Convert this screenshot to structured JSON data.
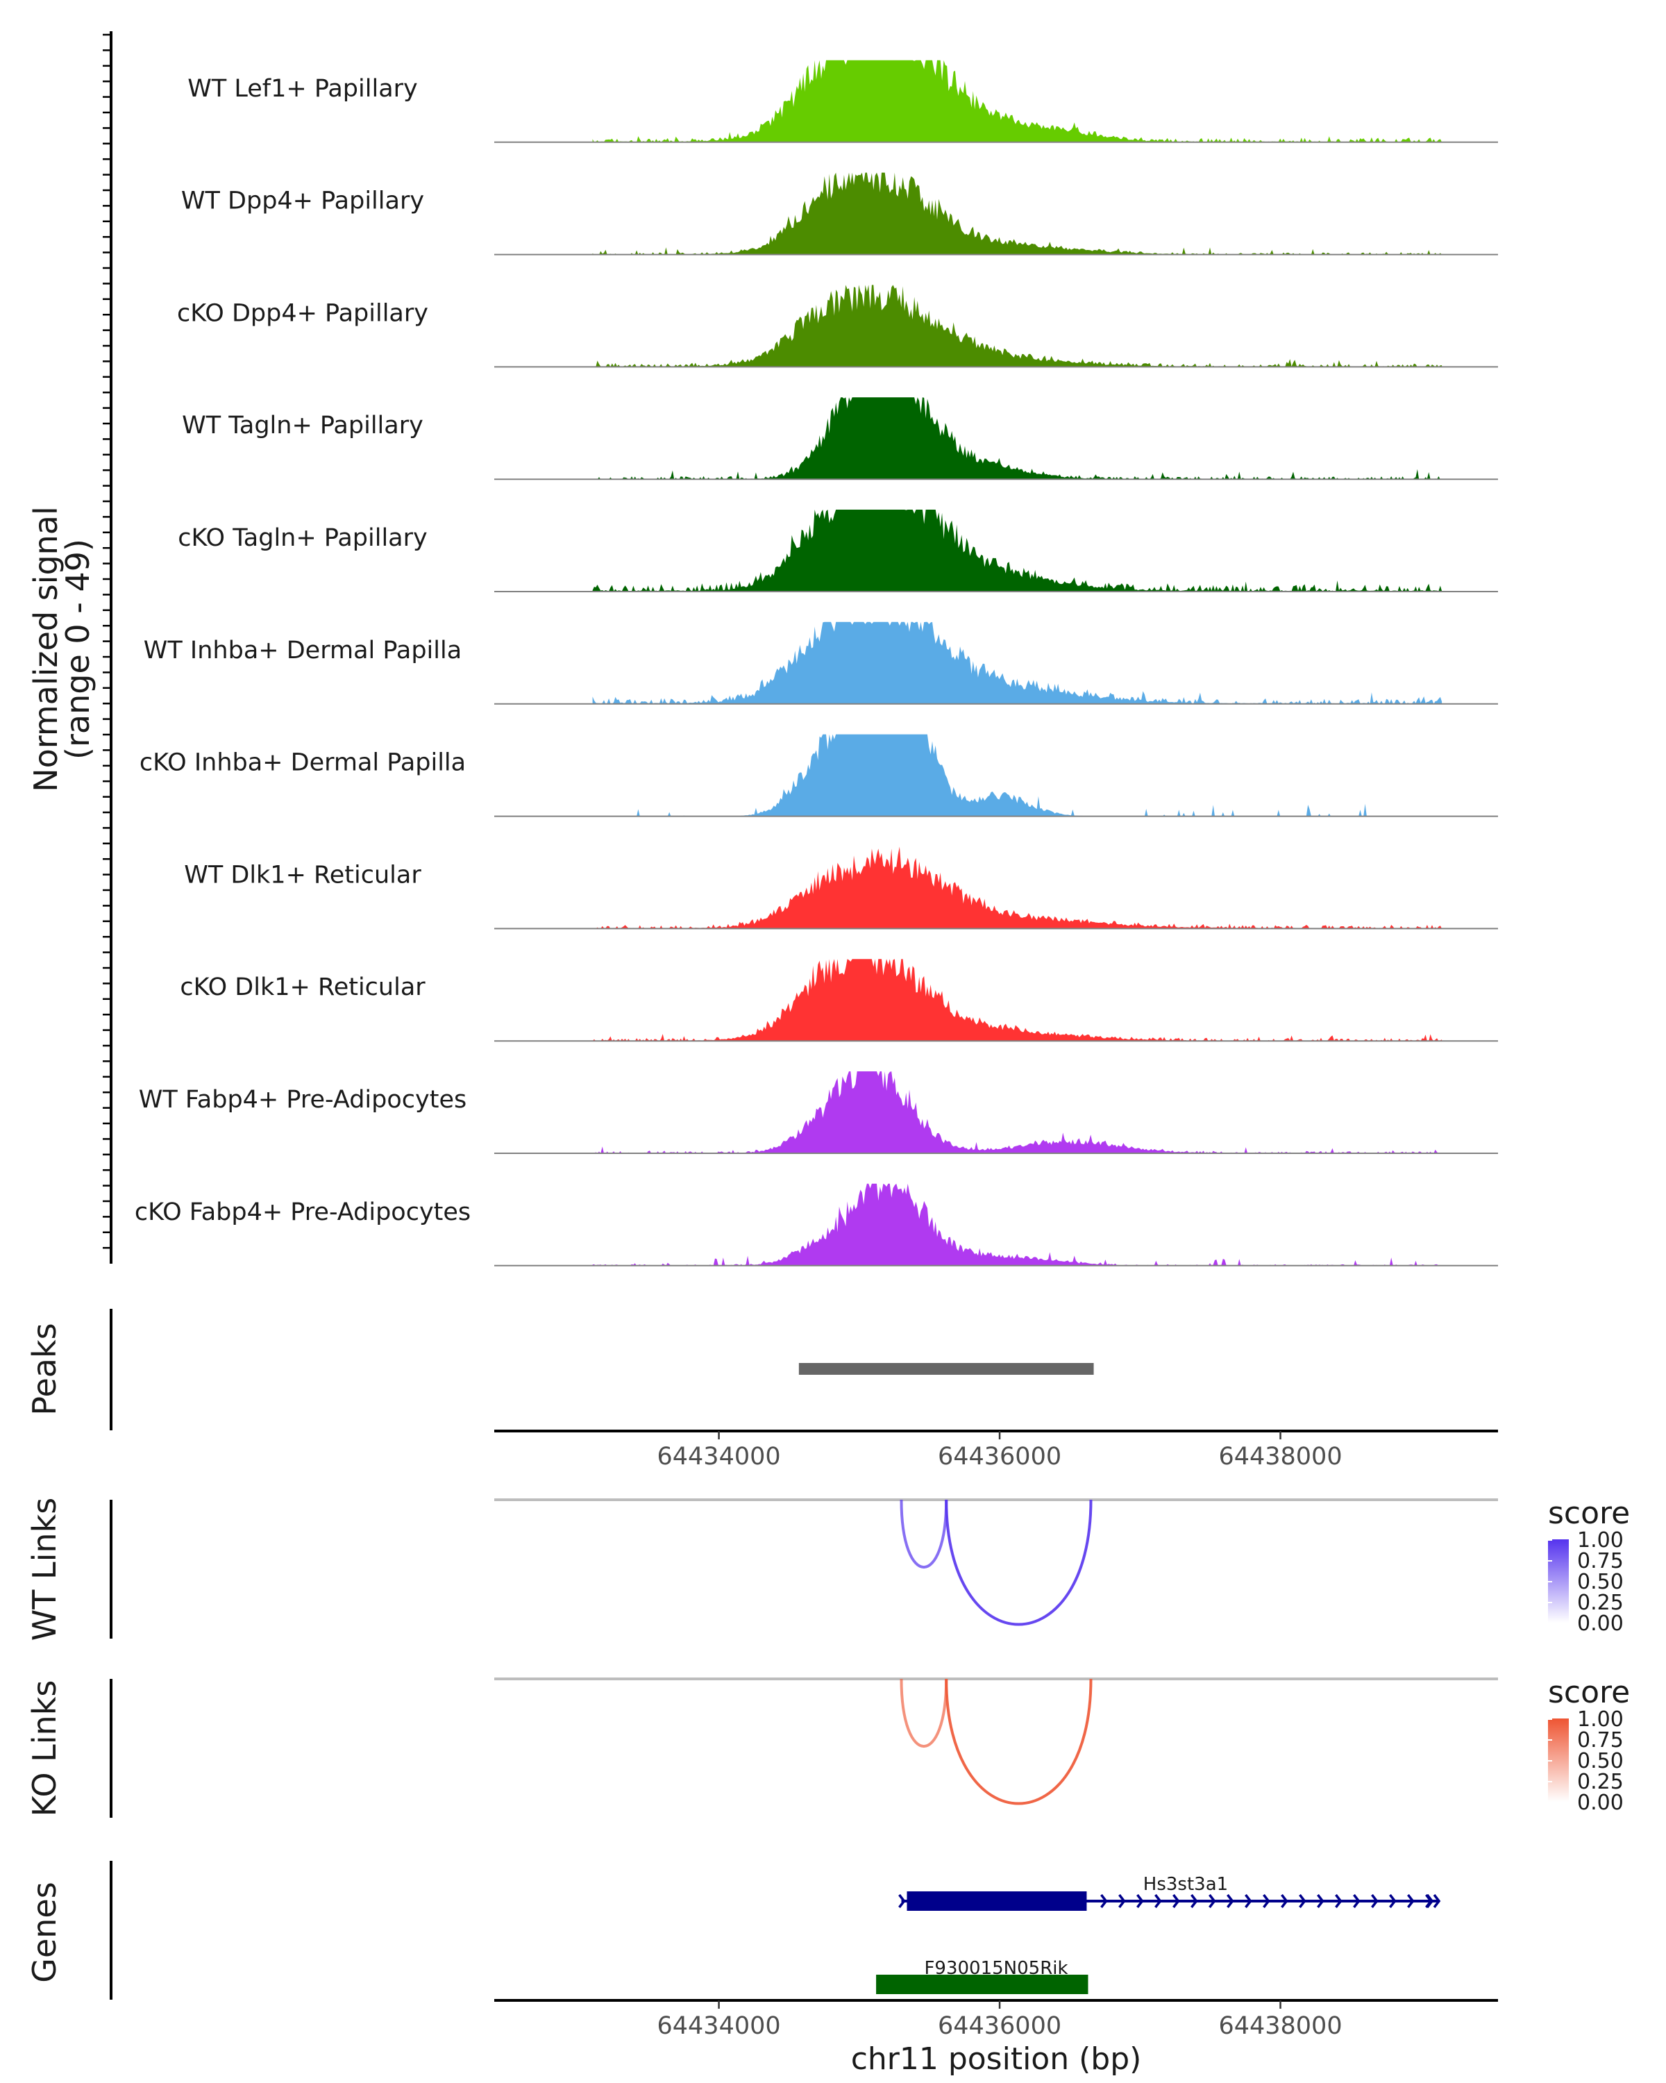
{
  "chart_data": {
    "type": "area",
    "title": "",
    "xlabel": "chr11 position (bp)",
    "ylabel_line1": "Normalized signal",
    "ylabel_line2": "(range 0 - 49)",
    "xlim": [
      64432400,
      64439550
    ],
    "ylim": [
      0,
      49
    ],
    "xticks": [
      64434000,
      64436000,
      64438000
    ],
    "xtick_labels": [
      "64434000",
      "64436000",
      "64438000"
    ],
    "coverage_tracks": [
      {
        "label": "WT Lef1+ Papillary",
        "color": "#66cc00",
        "color_key": "lime-green",
        "peaks": [
          [
            64435180,
            48,
            560
          ],
          [
            64434700,
            10,
            300
          ],
          [
            64435900,
            5,
            600
          ],
          [
            64436400,
            3,
            400
          ]
        ],
        "baseline": 0.6,
        "noise": 1.2,
        "seed": 1
      },
      {
        "label": "WT Dpp4+ Papillary",
        "color": "#4c8c00",
        "color_key": "olive-green",
        "peaks": [
          [
            64435120,
            34,
            520
          ],
          [
            64434700,
            8,
            260
          ],
          [
            64436000,
            4,
            700
          ]
        ],
        "baseline": 0.3,
        "noise": 2.0,
        "seed": 2
      },
      {
        "label": "cKO Dpp4+ Papillary",
        "color": "#4c8c00",
        "color_key": "olive-green",
        "peaks": [
          [
            64435130,
            30,
            560
          ],
          [
            64434700,
            8,
            300
          ],
          [
            64435900,
            4,
            700
          ]
        ],
        "baseline": 0.5,
        "noise": 1.6,
        "seed": 3
      },
      {
        "label": "WT Tagln+ Papillary",
        "color": "#006400",
        "color_key": "dark-green",
        "peaks": [
          [
            64435200,
            48,
            360
          ],
          [
            64434900,
            14,
            260
          ],
          [
            64435700,
            8,
            500
          ]
        ],
        "baseline": 0.4,
        "noise": 2.4,
        "seed": 4
      },
      {
        "label": "cKO Tagln+ Papillary",
        "color": "#006400",
        "color_key": "dark-green",
        "peaks": [
          [
            64435180,
            44,
            520
          ],
          [
            64434700,
            12,
            300
          ],
          [
            64435900,
            7,
            650
          ]
        ],
        "baseline": 1.0,
        "noise": 2.2,
        "seed": 5
      },
      {
        "label": "WT Inhba+ Dermal Papilla",
        "color": "#5aabe6",
        "color_key": "sky-blue",
        "peaks": [
          [
            64435160,
            44,
            560
          ],
          [
            64434700,
            10,
            300
          ],
          [
            64436100,
            6,
            700
          ]
        ],
        "baseline": 0.8,
        "noise": 1.8,
        "seed": 6
      },
      {
        "label": "cKO Inhba+ Dermal Papilla",
        "color": "#5aabe6",
        "color_key": "sky-blue",
        "peaks": [
          [
            64435050,
            44,
            360
          ],
          [
            64435280,
            46,
            280
          ],
          [
            64434700,
            12,
            260
          ],
          [
            64436000,
            9,
            300
          ]
        ],
        "baseline": 0.0,
        "noise": 3.2,
        "seed": 7
      },
      {
        "label": "WT Dlk1+ Reticular",
        "color": "#ff3333",
        "color_key": "red",
        "peaks": [
          [
            64435200,
            28,
            560
          ],
          [
            64434700,
            8,
            300
          ],
          [
            64436100,
            4,
            800
          ]
        ],
        "baseline": 0.5,
        "noise": 1.5,
        "seed": 8
      },
      {
        "label": "cKO Dlk1+ Reticular",
        "color": "#ff3333",
        "color_key": "red",
        "peaks": [
          [
            64435100,
            36,
            520
          ],
          [
            64434700,
            9,
            280
          ],
          [
            64436000,
            4,
            700
          ]
        ],
        "baseline": 0.4,
        "noise": 1.6,
        "seed": 9
      },
      {
        "label": "WT Fabp4+ Pre-Adipocytes",
        "color": "#b03af0",
        "color_key": "purple",
        "peaks": [
          [
            64435100,
            38,
            360
          ],
          [
            64434700,
            6,
            260
          ],
          [
            64436500,
            5,
            500
          ]
        ],
        "baseline": 0.3,
        "noise": 2.4,
        "seed": 10
      },
      {
        "label": "cKO Fabp4+ Pre-Adipocytes",
        "color": "#b03af0",
        "color_key": "purple",
        "peaks": [
          [
            64435200,
            38,
            360
          ],
          [
            64434700,
            6,
            260
          ],
          [
            64436000,
            4,
            500
          ]
        ],
        "baseline": 0.2,
        "noise": 2.4,
        "seed": 11
      }
    ],
    "peaks_track": {
      "label": "Peaks",
      "color": "#666666",
      "regions": [
        [
          64434570,
          64436670
        ]
      ]
    },
    "links": [
      {
        "label": "WT Links",
        "color": "#5533ee",
        "color_key": "blue",
        "legend_title": "score",
        "legend_values": [
          "1.00",
          "0.75",
          "0.50",
          "0.25",
          "0.00"
        ],
        "arcs": [
          {
            "start": 64435300,
            "end": 64435620,
            "score": 0.55
          },
          {
            "start": 64435620,
            "end": 64436650,
            "score": 0.85
          }
        ]
      },
      {
        "label": "KO Links",
        "color": "#ee5533",
        "color_key": "red",
        "legend_title": "score",
        "legend_values": [
          "1.00",
          "0.75",
          "0.50",
          "0.25",
          "0.00"
        ],
        "arcs": [
          {
            "start": 64435300,
            "end": 64435620,
            "score": 0.45
          },
          {
            "start": 64435620,
            "end": 64436650,
            "score": 0.85
          }
        ]
      }
    ],
    "genes": {
      "label": "Genes",
      "items": [
        {
          "name": "Hs3st3a1",
          "start": 64435300,
          "end": 64439130,
          "exon_end": 64436620,
          "strand": "+",
          "color": "#00008b",
          "color_key": "navy"
        },
        {
          "name": "F930015N05Rik",
          "start": 64435120,
          "end": 64436630,
          "strand": "-",
          "color": "#006400",
          "color_key": "dark-green"
        }
      ]
    }
  }
}
